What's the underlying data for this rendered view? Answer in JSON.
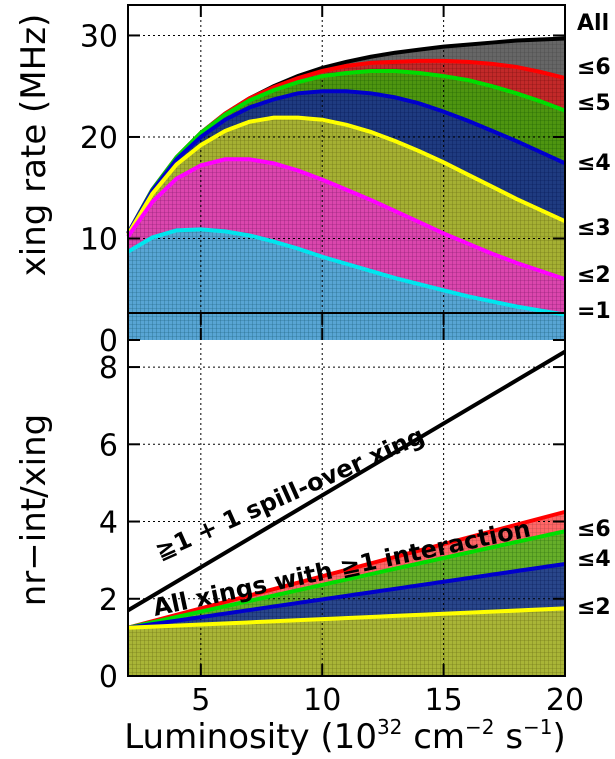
{
  "chart_data": [
    {
      "type": "area",
      "ylabel": "xing rate (MHz)",
      "xlim": [
        2,
        20
      ],
      "ylim": [
        0,
        33
      ],
      "yticks": [
        0,
        10,
        20,
        30
      ],
      "grid": true,
      "colors": {
        "All": "#000000",
        "≤6": "#ff0000",
        "≤5": "#00dd00",
        "≤4": "#0000cc",
        "≤3": "#ffff00",
        "≤2": "#ff00ff",
        "=1": "#00e5ee"
      },
      "right_labels": [
        "All",
        "≤6",
        "≤5",
        "≤4",
        "≤3",
        "≤2",
        "=1"
      ],
      "x": [
        2,
        3,
        4,
        5,
        6,
        7,
        8,
        9,
        10,
        11,
        12,
        13,
        14,
        15,
        16,
        17,
        18,
        19,
        20
      ],
      "series": [
        {
          "name": "All",
          "values": [
            10.5,
            14.8,
            18.0,
            20.4,
            22.3,
            23.8,
            25.0,
            26.0,
            26.8,
            27.4,
            27.9,
            28.3,
            28.6,
            28.9,
            29.1,
            29.3,
            29.5,
            29.6,
            29.7
          ]
        },
        {
          "name": "≤6",
          "values": [
            10.5,
            14.8,
            18.0,
            20.4,
            22.3,
            23.8,
            24.9,
            25.8,
            26.5,
            27.0,
            27.3,
            27.4,
            27.5,
            27.5,
            27.4,
            27.2,
            26.9,
            26.4,
            25.8
          ]
        },
        {
          "name": "≤5",
          "values": [
            10.5,
            14.8,
            18.0,
            20.4,
            22.2,
            23.6,
            24.6,
            25.4,
            26.0,
            26.3,
            26.5,
            26.5,
            26.3,
            26.0,
            25.6,
            25.0,
            24.3,
            23.5,
            22.6
          ]
        },
        {
          "name": "≤4",
          "values": [
            10.5,
            14.7,
            17.8,
            20.0,
            21.7,
            22.9,
            23.7,
            24.3,
            24.5,
            24.5,
            24.3,
            23.9,
            23.3,
            22.5,
            21.6,
            20.6,
            19.6,
            18.5,
            17.4
          ]
        },
        {
          "name": "≤3",
          "values": [
            10.4,
            14.4,
            17.3,
            19.2,
            20.6,
            21.5,
            21.9,
            21.9,
            21.7,
            21.2,
            20.5,
            19.6,
            18.6,
            17.5,
            16.3,
            15.1,
            13.9,
            12.8,
            11.7
          ]
        },
        {
          "name": "≤2",
          "values": [
            10.2,
            13.6,
            15.9,
            17.2,
            17.8,
            17.8,
            17.4,
            16.7,
            15.8,
            14.8,
            13.8,
            12.7,
            11.6,
            10.5,
            9.5,
            8.5,
            7.6,
            6.8,
            6.0
          ]
        },
        {
          "name": "=1",
          "values": [
            8.7,
            10.1,
            10.8,
            10.9,
            10.7,
            10.3,
            9.7,
            9.0,
            8.2,
            7.5,
            6.8,
            6.1,
            5.5,
            4.9,
            4.3,
            3.8,
            3.3,
            2.9,
            2.5
          ]
        }
      ]
    },
    {
      "type": "area",
      "ylabel": "nr−int/xing",
      "xlabel": "Luminosity (10",
      "xlabel_sup1": "32",
      "xlabel_mid": " cm",
      "xlabel_sup2": "−2",
      "xlabel_mid2": " s",
      "xlabel_sup3": "−1",
      "xlabel_end": ")",
      "xlim": [
        2,
        20
      ],
      "ylim": [
        0,
        9.4
      ],
      "xticks": [
        5,
        10,
        15,
        20
      ],
      "yticks": [
        0,
        2,
        4,
        6,
        8
      ],
      "grid": true,
      "colors": {
        "spill": "#000000",
        "≤6": "#ff0000",
        "≤5": "#00dd00",
        "≤4": "#0000cc",
        "≤2": "#ffff00"
      },
      "right_labels": [
        "≤6",
        "≤4",
        "≤2"
      ],
      "annotations": [
        "≧1 + 1 spill-over xing",
        "All xings with ≧1 interaction"
      ],
      "x": [
        2,
        20
      ],
      "series": [
        {
          "name": "≧1 + 1 spill-over xing",
          "values": [
            1.7,
            8.4
          ]
        },
        {
          "name": "≤6",
          "values": [
            1.25,
            4.25
          ]
        },
        {
          "name": "≤5",
          "values": [
            1.25,
            3.75
          ]
        },
        {
          "name": "≤4",
          "values": [
            1.25,
            2.9
          ]
        },
        {
          "name": "≤2",
          "values": [
            1.25,
            1.75
          ]
        }
      ]
    }
  ]
}
